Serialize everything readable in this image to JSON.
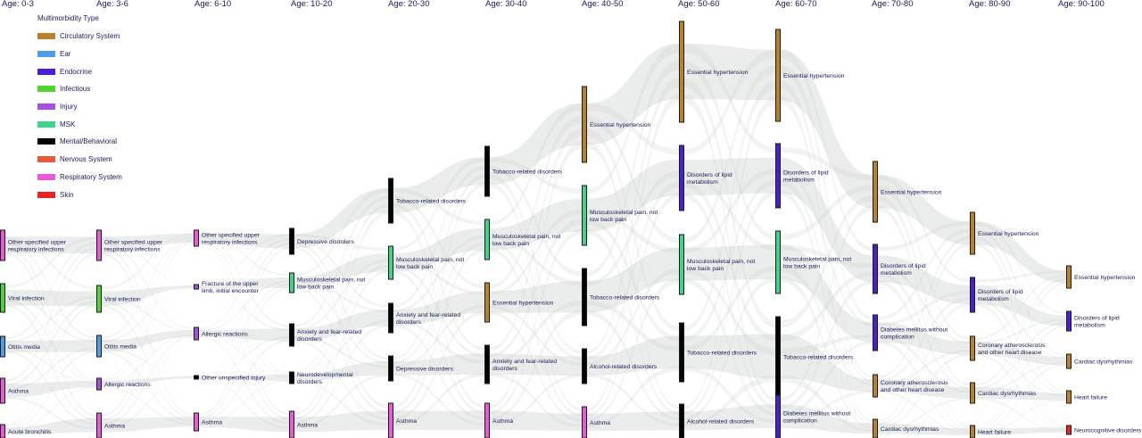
{
  "legend": {
    "title": "Multimorbidity Type",
    "items": [
      {
        "label": "Circulatory System",
        "color": "#b8812e"
      },
      {
        "label": "Ear",
        "color": "#4b9ee8"
      },
      {
        "label": "Endocrine",
        "color": "#4a1fcf"
      },
      {
        "label": "Infectious",
        "color": "#4ed52e"
      },
      {
        "label": "Injury",
        "color": "#a94fe0"
      },
      {
        "label": "MSK",
        "color": "#3ed48a"
      },
      {
        "label": "Mental/Behavioral",
        "color": "#050505"
      },
      {
        "label": "Nervous System",
        "color": "#e8593a"
      },
      {
        "label": "Respiratory System",
        "color": "#e85ad7"
      },
      {
        "label": "Skin",
        "color": "#e82323"
      }
    ]
  },
  "columns": [
    {
      "age": "Age: 0-3",
      "nodes": [
        {
          "label": "Other specified upper respiratory infections",
          "type": "Respiratory System"
        },
        {
          "label": "Viral infection",
          "type": "Infectious"
        },
        {
          "label": "Otitis media",
          "type": "Ear"
        },
        {
          "label": "Asthma",
          "type": "Respiratory System"
        },
        {
          "label": "Acute bronchitis",
          "type": "Respiratory System"
        }
      ]
    },
    {
      "age": "Age: 3-6",
      "nodes": [
        {
          "label": "Other specified upper respiratory infections",
          "type": "Respiratory System"
        },
        {
          "label": "Viral infection",
          "type": "Infectious"
        },
        {
          "label": "Otitis media",
          "type": "Ear"
        },
        {
          "label": "Allergic reactions",
          "type": "Injury"
        },
        {
          "label": "Asthma",
          "type": "Respiratory System"
        }
      ]
    },
    {
      "age": "Age: 6-10",
      "nodes": [
        {
          "label": "Other specified upper respiratory infections",
          "type": "Respiratory System"
        },
        {
          "label": "Fracture of the upper limb, initial encounter",
          "type": "Injury"
        },
        {
          "label": "Allergic reactions",
          "type": "Injury"
        },
        {
          "label": "Other unspecified injury",
          "type": "Mental/Behavioral"
        },
        {
          "label": "Asthma",
          "type": "Respiratory System"
        }
      ]
    },
    {
      "age": "Age: 10-20",
      "nodes": [
        {
          "label": "Depressive disorders",
          "type": "Mental/Behavioral"
        },
        {
          "label": "Musculoskeletal pain, not low back pain",
          "type": "MSK"
        },
        {
          "label": "Anxiety and fear-related disorders",
          "type": "Mental/Behavioral"
        },
        {
          "label": "Neurodevelopmental disorders",
          "type": "Mental/Behavioral"
        },
        {
          "label": "Asthma",
          "type": "Respiratory System"
        }
      ]
    },
    {
      "age": "Age: 20-30",
      "nodes": [
        {
          "label": "Tobacco-related disorders",
          "type": "Mental/Behavioral"
        },
        {
          "label": "Musculoskeletal pain, not low back pain",
          "type": "MSK"
        },
        {
          "label": "Anxiety and fear-related disorders",
          "type": "Mental/Behavioral"
        },
        {
          "label": "Depressive disorders",
          "type": "Mental/Behavioral"
        },
        {
          "label": "Asthma",
          "type": "Respiratory System"
        }
      ]
    },
    {
      "age": "Age: 30-40",
      "nodes": [
        {
          "label": "Tobacco-related disorders",
          "type": "Mental/Behavioral"
        },
        {
          "label": "Musculoskeletal pain, not low back pain",
          "type": "MSK"
        },
        {
          "label": "Essential hypertension",
          "type": "Circulatory System"
        },
        {
          "label": "Anxiety and fear-related disorders",
          "type": "Mental/Behavioral"
        },
        {
          "label": "Asthma",
          "type": "Respiratory System"
        }
      ]
    },
    {
      "age": "Age: 40-50",
      "nodes": [
        {
          "label": "Essential hypertension",
          "type": "Circulatory System"
        },
        {
          "label": "Musculoskeletal pain, not low back pain",
          "type": "MSK"
        },
        {
          "label": "Tobacco-related disorders",
          "type": "Mental/Behavioral"
        },
        {
          "label": "Alcohol-related disorders",
          "type": "Mental/Behavioral"
        },
        {
          "label": "Asthma",
          "type": "Respiratory System"
        }
      ]
    },
    {
      "age": "Age: 50-60",
      "nodes": [
        {
          "label": "Essential hypertension",
          "type": "Circulatory System"
        },
        {
          "label": "Disorders of lipid metabolism",
          "type": "Endocrine"
        },
        {
          "label": "Musculoskeletal pain, not low back pain",
          "type": "MSK"
        },
        {
          "label": "Tobacco-related disorders",
          "type": "Mental/Behavioral"
        },
        {
          "label": "Alcohol-related disorders",
          "type": "Mental/Behavioral"
        }
      ]
    },
    {
      "age": "Age: 60-70",
      "nodes": [
        {
          "label": "Essential hypertension",
          "type": "Circulatory System"
        },
        {
          "label": "Disorders of lipid metabolism",
          "type": "Endocrine"
        },
        {
          "label": "Musculoskeletal pain, not low back pain",
          "type": "MSK"
        },
        {
          "label": "Tobacco-related disorders",
          "type": "Mental/Behavioral"
        },
        {
          "label": "Diabetes mellitus without complication",
          "type": "Endocrine"
        }
      ]
    },
    {
      "age": "Age: 70-80",
      "nodes": [
        {
          "label": "Essential hypertension",
          "type": "Circulatory System"
        },
        {
          "label": "Disorders of lipid metabolism",
          "type": "Endocrine"
        },
        {
          "label": "Diabetes mellitus without complication",
          "type": "Endocrine"
        },
        {
          "label": "Coronary atherosclerosis and other heart disease",
          "type": "Circulatory System"
        },
        {
          "label": "Cardiac dysrhythmias",
          "type": "Circulatory System"
        }
      ]
    },
    {
      "age": "Age: 80-90",
      "nodes": [
        {
          "label": "Essential hypertension",
          "type": "Circulatory System"
        },
        {
          "label": "Disorders of lipid metabolism",
          "type": "Endocrine"
        },
        {
          "label": "Coronary atherosclerosis and other heart disease",
          "type": "Circulatory System"
        },
        {
          "label": "Cardiac dysrhythmias",
          "type": "Circulatory System"
        },
        {
          "label": "Heart failure",
          "type": "Circulatory System"
        }
      ]
    },
    {
      "age": "Age: 90-100",
      "nodes": [
        {
          "label": "Essential hypertension",
          "type": "Circulatory System"
        },
        {
          "label": "Disorders of lipid metabolism",
          "type": "Endocrine"
        },
        {
          "label": "Cardiac dysrhythmias",
          "type": "Circulatory System"
        },
        {
          "label": "Heart failure",
          "type": "Circulatory System"
        },
        {
          "label": "Neurocognitive disorders",
          "type": "Skin"
        }
      ]
    }
  ]
}
